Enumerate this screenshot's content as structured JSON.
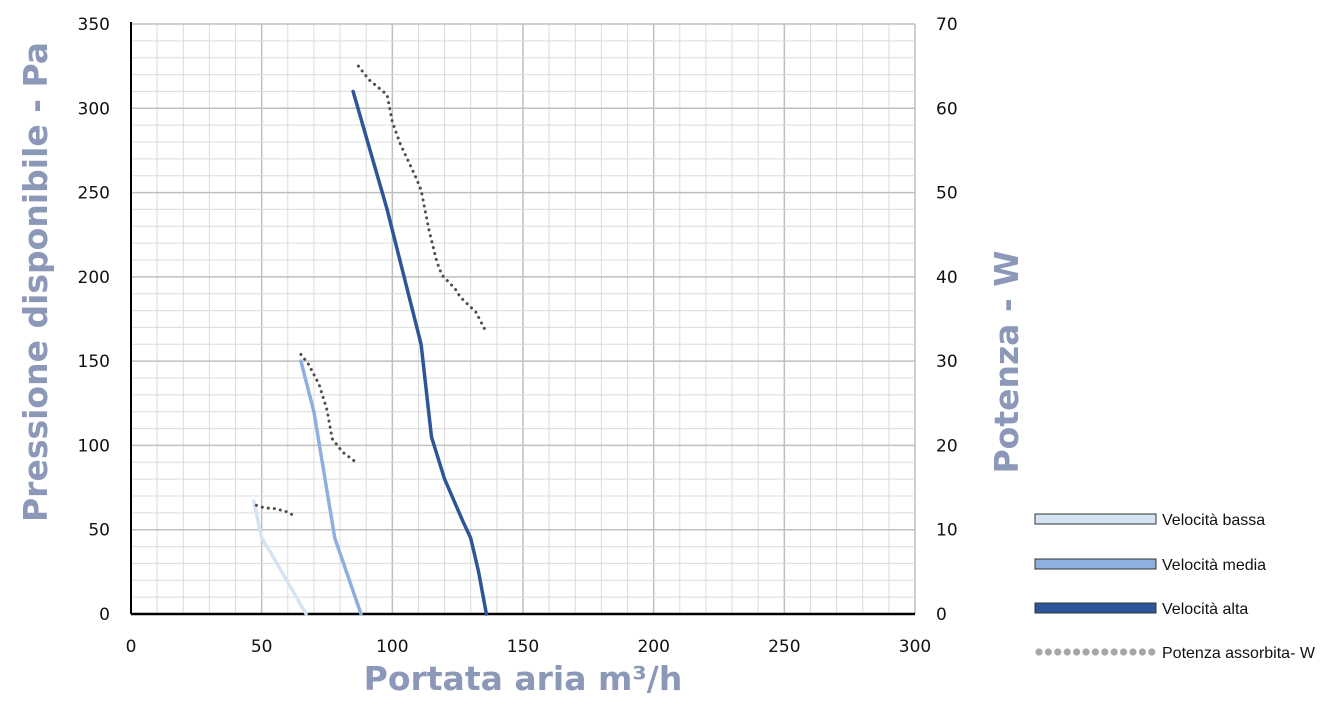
{
  "chart_data": {
    "type": "line",
    "xlabel": "Portata aria m³/h",
    "ylabel": "Pressione disponibile - Pa",
    "y2label": "Potenza - W",
    "xlim": [
      0,
      300
    ],
    "ylim": [
      0,
      350
    ],
    "y2lim": [
      0,
      70
    ],
    "x_ticks": [
      "0",
      "50",
      "100",
      "150",
      "200",
      "250",
      "300"
    ],
    "y_ticks": [
      "0",
      "50",
      "100",
      "150",
      "200",
      "250",
      "300",
      "350"
    ],
    "y2_ticks": [
      "0",
      "10",
      "20",
      "30",
      "40",
      "50",
      "60",
      "70"
    ],
    "grid": true,
    "legend_position": "bottom-right",
    "series": [
      {
        "name": "Velocità bassa",
        "axis": "left",
        "style": "solid",
        "color": "#d6e3f3",
        "points": [
          [
            47,
            67
          ],
          [
            50,
            45
          ],
          [
            54,
            35
          ],
          [
            67,
            0
          ]
        ]
      },
      {
        "name": "Velocità media",
        "axis": "left",
        "style": "solid",
        "color": "#8eb0de",
        "points": [
          [
            65,
            150
          ],
          [
            70,
            120
          ],
          [
            78,
            45
          ],
          [
            88,
            0
          ]
        ]
      },
      {
        "name": "Velocità alta",
        "axis": "left",
        "style": "solid",
        "color": "#2e5597",
        "points": [
          [
            85,
            310
          ],
          [
            98,
            240
          ],
          [
            111,
            160
          ],
          [
            115,
            105
          ],
          [
            120,
            80
          ],
          [
            127,
            55
          ],
          [
            130,
            45
          ],
          [
            133,
            25
          ],
          [
            136,
            0
          ]
        ]
      },
      {
        "name": "Potenza assorbita- W",
        "axis": "right",
        "style": "dotted",
        "color": "#4d4d4d",
        "segments": [
          [
            [
              48,
              12.9
            ],
            [
              51,
              12.6
            ],
            [
              55,
              12.5
            ],
            [
              59,
              12.2
            ],
            [
              63,
              11.6
            ]
          ],
          [
            [
              65,
              30.8
            ],
            [
              68,
              29.6
            ],
            [
              72,
              27.2
            ],
            [
              75,
              24.2
            ],
            [
              77,
              20.8
            ],
            [
              81,
              19.2
            ],
            [
              87,
              17.8
            ]
          ],
          [
            [
              87,
              65
            ],
            [
              91,
              63.4
            ],
            [
              98,
              61.6
            ],
            [
              100,
              58.4
            ],
            [
              103,
              55.8
            ],
            [
              109,
              51.8
            ],
            [
              111,
              50.3
            ],
            [
              114,
              45.6
            ],
            [
              117,
              41.8
            ],
            [
              119,
              40.2
            ],
            [
              124,
              38.6
            ],
            [
              126,
              37.6
            ],
            [
              132,
              35.8
            ],
            [
              136,
              33.4
            ]
          ]
        ]
      }
    ]
  }
}
